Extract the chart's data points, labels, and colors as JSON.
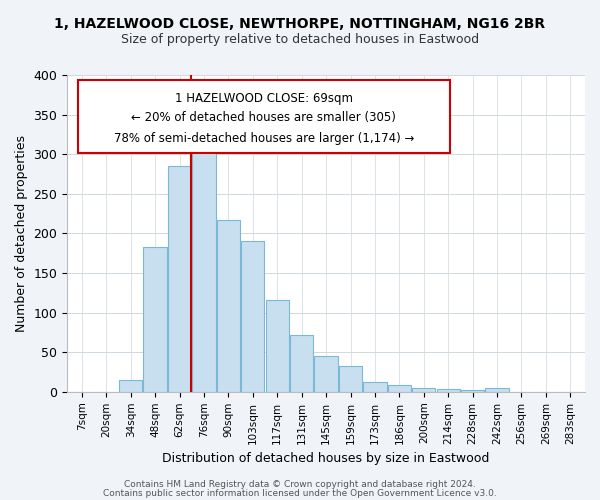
{
  "title1": "1, HAZELWOOD CLOSE, NEWTHORPE, NOTTINGHAM, NG16 2BR",
  "title2": "Size of property relative to detached houses in Eastwood",
  "xlabel": "Distribution of detached houses by size in Eastwood",
  "ylabel": "Number of detached properties",
  "footer1": "Contains HM Land Registry data © Crown copyright and database right 2024.",
  "footer2": "Contains public sector information licensed under the Open Government Licence v3.0.",
  "bar_labels": [
    "7sqm",
    "20sqm",
    "34sqm",
    "48sqm",
    "62sqm",
    "76sqm",
    "90sqm",
    "103sqm",
    "117sqm",
    "131sqm",
    "145sqm",
    "159sqm",
    "173sqm",
    "186sqm",
    "200sqm",
    "214sqm",
    "228sqm",
    "242sqm",
    "256sqm",
    "269sqm",
    "283sqm"
  ],
  "bar_values": [
    0,
    0,
    15,
    183,
    285,
    312,
    217,
    190,
    116,
    72,
    45,
    33,
    12,
    8,
    5,
    3,
    2,
    5,
    0,
    0,
    0
  ],
  "bar_color": "#c8dff0",
  "bar_edge_color": "#7ab8d8",
  "highlight_line_color": "#cc0000",
  "annotation_title": "1 HAZELWOOD CLOSE: 69sqm",
  "annotation_line1": "← 20% of detached houses are smaller (305)",
  "annotation_line2": "78% of semi-detached houses are larger (1,174) →",
  "annotation_box_edge_color": "#cc0000",
  "ylim": [
    0,
    400
  ],
  "yticks": [
    0,
    50,
    100,
    150,
    200,
    250,
    300,
    350,
    400
  ],
  "background_color": "#f0f4f8",
  "plot_background_color": "#ffffff",
  "grid_color": "#d0d8e0"
}
